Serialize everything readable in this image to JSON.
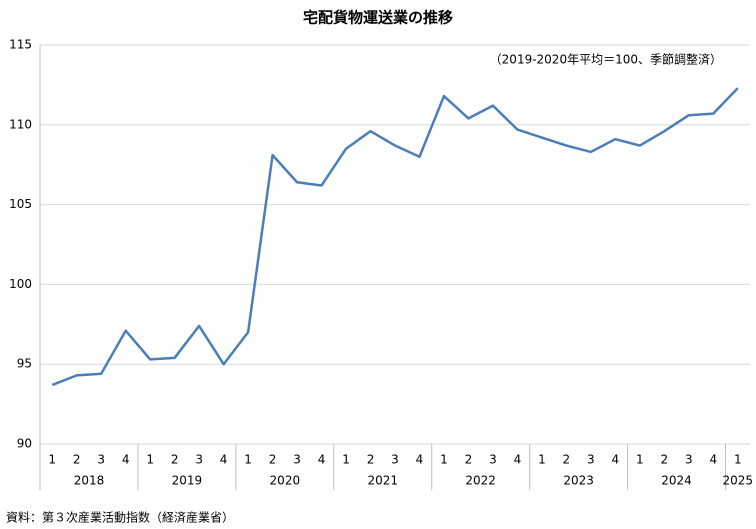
{
  "chart_data": {
    "type": "line",
    "title": "宅配貨物運送業の推移",
    "annotation": "（2019-2020年平均＝100、季節調整済）",
    "source": "資料：第３次産業活動指数（経済産業省）",
    "categories": [
      "1",
      "2",
      "3",
      "4",
      "1",
      "2",
      "3",
      "4",
      "1",
      "2",
      "3",
      "4",
      "1",
      "2",
      "3",
      "4",
      "1",
      "2",
      "3",
      "4",
      "1",
      "2",
      "3",
      "4",
      "1",
      "2",
      "3",
      "4",
      "1"
    ],
    "x_groups": [
      "2018",
      "2019",
      "2020",
      "2021",
      "2022",
      "2023",
      "2024",
      "2025"
    ],
    "values": [
      93.7,
      94.3,
      94.4,
      97.1,
      95.3,
      95.4,
      97.4,
      95.0,
      97.0,
      108.1,
      106.4,
      106.2,
      108.5,
      109.6,
      108.7,
      108.0,
      111.8,
      110.4,
      111.2,
      109.7,
      109.2,
      108.7,
      108.3,
      109.1,
      108.7,
      109.6,
      110.6,
      110.7,
      112.3
    ],
    "color": "#4a7ebb",
    "ylim": [
      90,
      115
    ],
    "yticks": [
      90,
      95,
      100,
      105,
      110,
      115
    ],
    "grid": true
  }
}
